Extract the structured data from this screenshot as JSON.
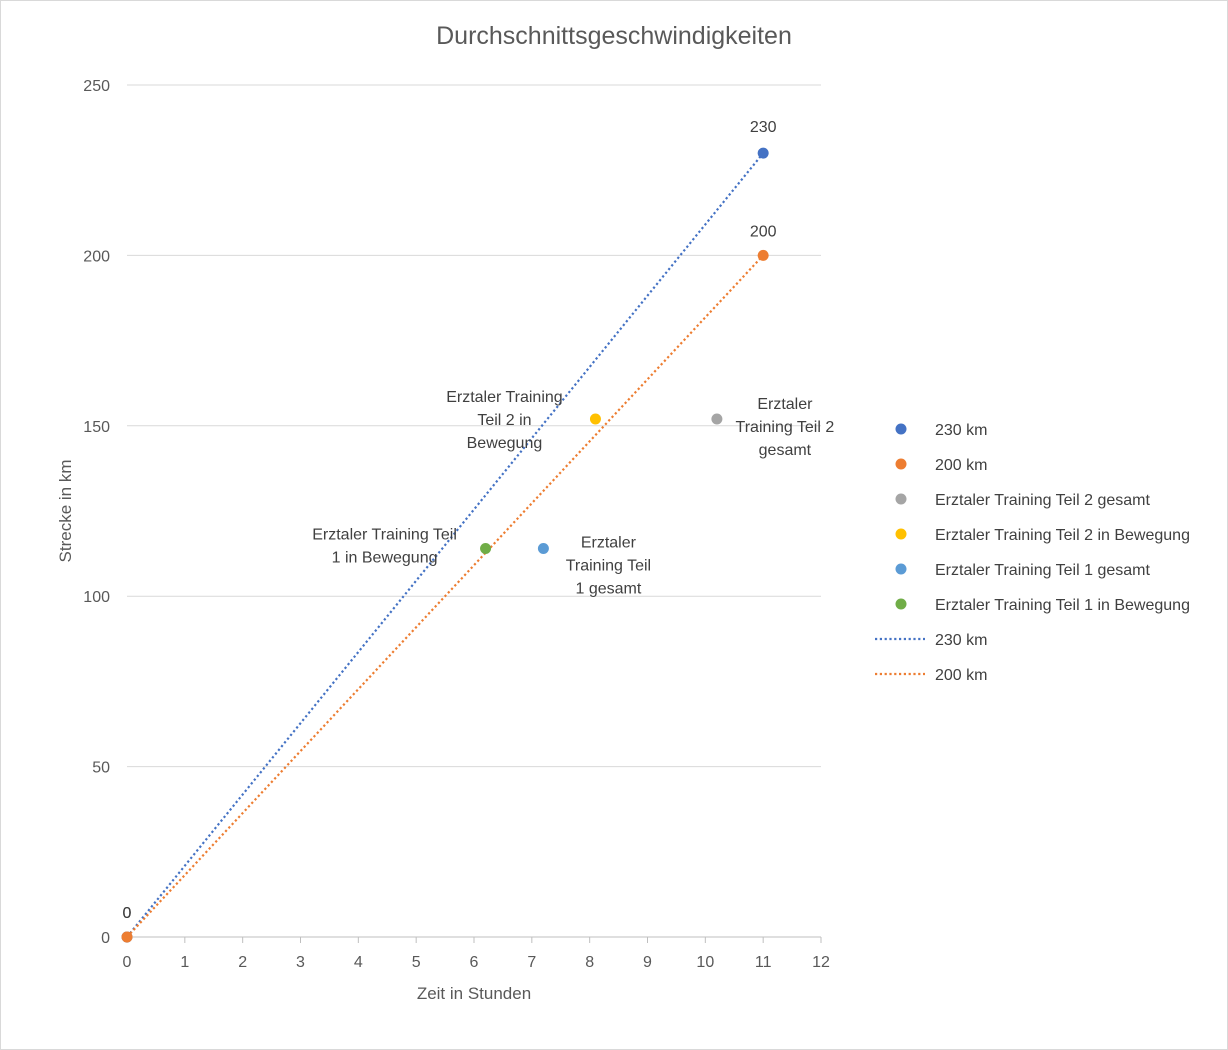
{
  "chart_data": {
    "type": "scatter",
    "title": "Durchschnittsgeschwindigkeiten",
    "xlabel": "Zeit in Stunden",
    "ylabel": "Strecke in km",
    "xlim": [
      0,
      12
    ],
    "ylim": [
      0,
      250
    ],
    "x_ticks": [
      "0",
      "1",
      "2",
      "3",
      "4",
      "5",
      "6",
      "7",
      "8",
      "9",
      "10",
      "11",
      "12"
    ],
    "y_ticks": [
      "0",
      "50",
      "100",
      "150",
      "200",
      "250"
    ],
    "grid": "horizontal",
    "legend_position": "right",
    "series": [
      {
        "name": "230 km",
        "color": "#4472C4",
        "points": [
          {
            "x": 0,
            "y": 0,
            "label": "0"
          },
          {
            "x": 11,
            "y": 230,
            "label": "230"
          }
        ]
      },
      {
        "name": "200 km",
        "color": "#ED7D31",
        "points": [
          {
            "x": 0,
            "y": 0,
            "label": "0"
          },
          {
            "x": 11,
            "y": 200,
            "label": "200"
          }
        ]
      },
      {
        "name": "Erztaler Training Teil 2 gesamt",
        "color": "#A5A5A5",
        "points": [
          {
            "x": 10.2,
            "y": 152,
            "label": [
              "Erztaler",
              "Training Teil 2",
              "gesamt"
            ]
          }
        ]
      },
      {
        "name": "Erztaler Training Teil 2 in Bewegung",
        "color": "#FFC000",
        "points": [
          {
            "x": 8.1,
            "y": 152,
            "label": [
              "Erztaler Training",
              "Teil 2 in",
              "Bewegung"
            ]
          }
        ]
      },
      {
        "name": "Erztaler Training Teil 1 gesamt",
        "color": "#5B9BD5",
        "points": [
          {
            "x": 7.2,
            "y": 114,
            "label": [
              "Erztaler",
              "Training Teil",
              "1 gesamt"
            ]
          }
        ]
      },
      {
        "name": "Erztaler Training Teil 1 in Bewegung",
        "color": "#70AD47",
        "points": [
          {
            "x": 6.2,
            "y": 114,
            "label": [
              "Erztaler Training Teil",
              "1 in Bewegung"
            ]
          }
        ]
      }
    ],
    "trendlines": [
      {
        "name": "230 km",
        "color": "#4472C4",
        "style": "dotted",
        "from": [
          0,
          0
        ],
        "to": [
          11,
          230
        ]
      },
      {
        "name": "200 km",
        "color": "#ED7D31",
        "style": "dotted",
        "from": [
          0,
          0
        ],
        "to": [
          11,
          200
        ]
      }
    ]
  }
}
